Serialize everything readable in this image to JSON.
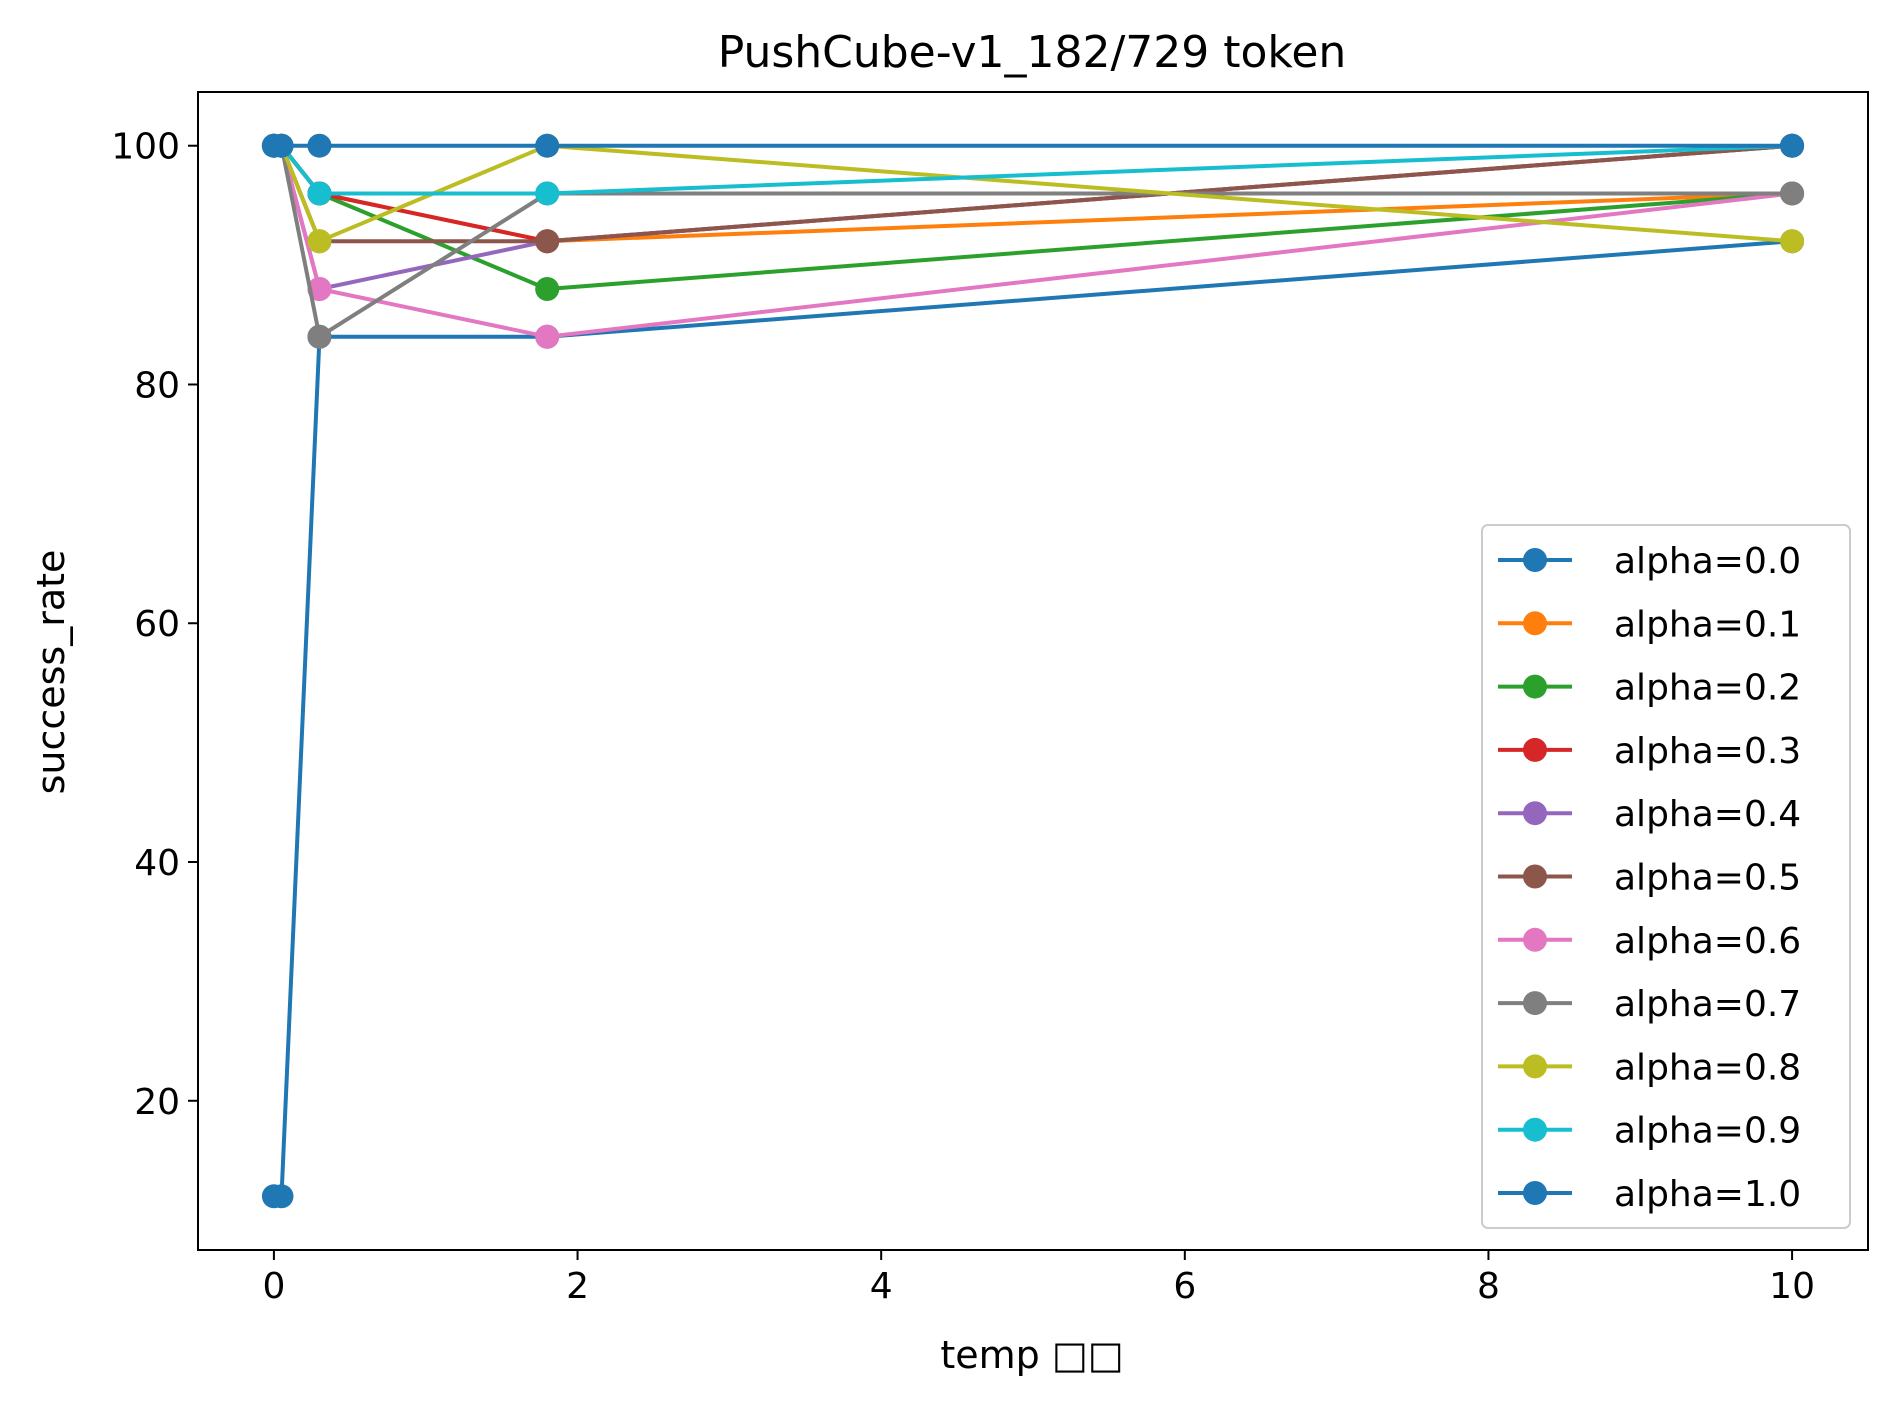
{
  "chart_data": {
    "type": "line",
    "title": "PushCube-v1_182/729 token",
    "xlabel": "temp □□",
    "ylabel": "success_rate",
    "xlim": [
      -0.5,
      10.5
    ],
    "ylim": [
      7.5,
      104.5
    ],
    "xticks": [
      0,
      2,
      4,
      6,
      8,
      10
    ],
    "yticks": [
      20,
      40,
      60,
      80,
      100
    ],
    "grid": false,
    "legend_position": "lower right",
    "series": [
      {
        "name": "alpha=0.0",
        "color": "#1f77b4",
        "points": [
          [
            0,
            12
          ],
          [
            0.05,
            12
          ],
          [
            0.3,
            84
          ],
          [
            1.8,
            84
          ],
          [
            10,
            92
          ]
        ]
      },
      {
        "name": "alpha=0.1",
        "color": "#ff7f0e",
        "points": [
          [
            0,
            100
          ],
          [
            0.05,
            100
          ],
          [
            0.3,
            96
          ],
          [
            1.8,
            92
          ],
          [
            10,
            96
          ]
        ]
      },
      {
        "name": "alpha=0.2",
        "color": "#2ca02c",
        "points": [
          [
            0,
            100
          ],
          [
            0.05,
            100
          ],
          [
            0.3,
            96
          ],
          [
            1.8,
            88
          ],
          [
            10,
            96
          ]
        ]
      },
      {
        "name": "alpha=0.3",
        "color": "#d62728",
        "points": [
          [
            0,
            100
          ],
          [
            0.05,
            100
          ],
          [
            0.3,
            96
          ],
          [
            1.8,
            92
          ],
          [
            10,
            100
          ]
        ]
      },
      {
        "name": "alpha=0.4",
        "color": "#9467bd",
        "points": [
          [
            0,
            100
          ],
          [
            0.05,
            100
          ],
          [
            0.3,
            88
          ],
          [
            1.8,
            92
          ],
          [
            10,
            100
          ]
        ]
      },
      {
        "name": "alpha=0.5",
        "color": "#8c564b",
        "points": [
          [
            0,
            100
          ],
          [
            0.05,
            100
          ],
          [
            0.3,
            92
          ],
          [
            1.8,
            92
          ],
          [
            10,
            100
          ]
        ]
      },
      {
        "name": "alpha=0.6",
        "color": "#e377c2",
        "points": [
          [
            0,
            100
          ],
          [
            0.05,
            100
          ],
          [
            0.3,
            88
          ],
          [
            1.8,
            84
          ],
          [
            10,
            96
          ]
        ]
      },
      {
        "name": "alpha=0.7",
        "color": "#7f7f7f",
        "points": [
          [
            0,
            100
          ],
          [
            0.05,
            100
          ],
          [
            0.3,
            84
          ],
          [
            1.8,
            96
          ],
          [
            10,
            96
          ]
        ]
      },
      {
        "name": "alpha=0.8",
        "color": "#bcbd22",
        "points": [
          [
            0,
            100
          ],
          [
            0.05,
            100
          ],
          [
            0.3,
            92
          ],
          [
            1.8,
            100
          ],
          [
            10,
            92
          ]
        ]
      },
      {
        "name": "alpha=0.9",
        "color": "#17becf",
        "points": [
          [
            0,
            100
          ],
          [
            0.05,
            100
          ],
          [
            0.3,
            96
          ],
          [
            1.8,
            96
          ],
          [
            10,
            100
          ]
        ]
      },
      {
        "name": "alpha=1.0",
        "color": "#1f77b4",
        "points": [
          [
            0,
            100
          ],
          [
            0.05,
            100
          ],
          [
            0.3,
            100
          ],
          [
            1.8,
            100
          ],
          [
            10,
            100
          ]
        ]
      }
    ]
  }
}
